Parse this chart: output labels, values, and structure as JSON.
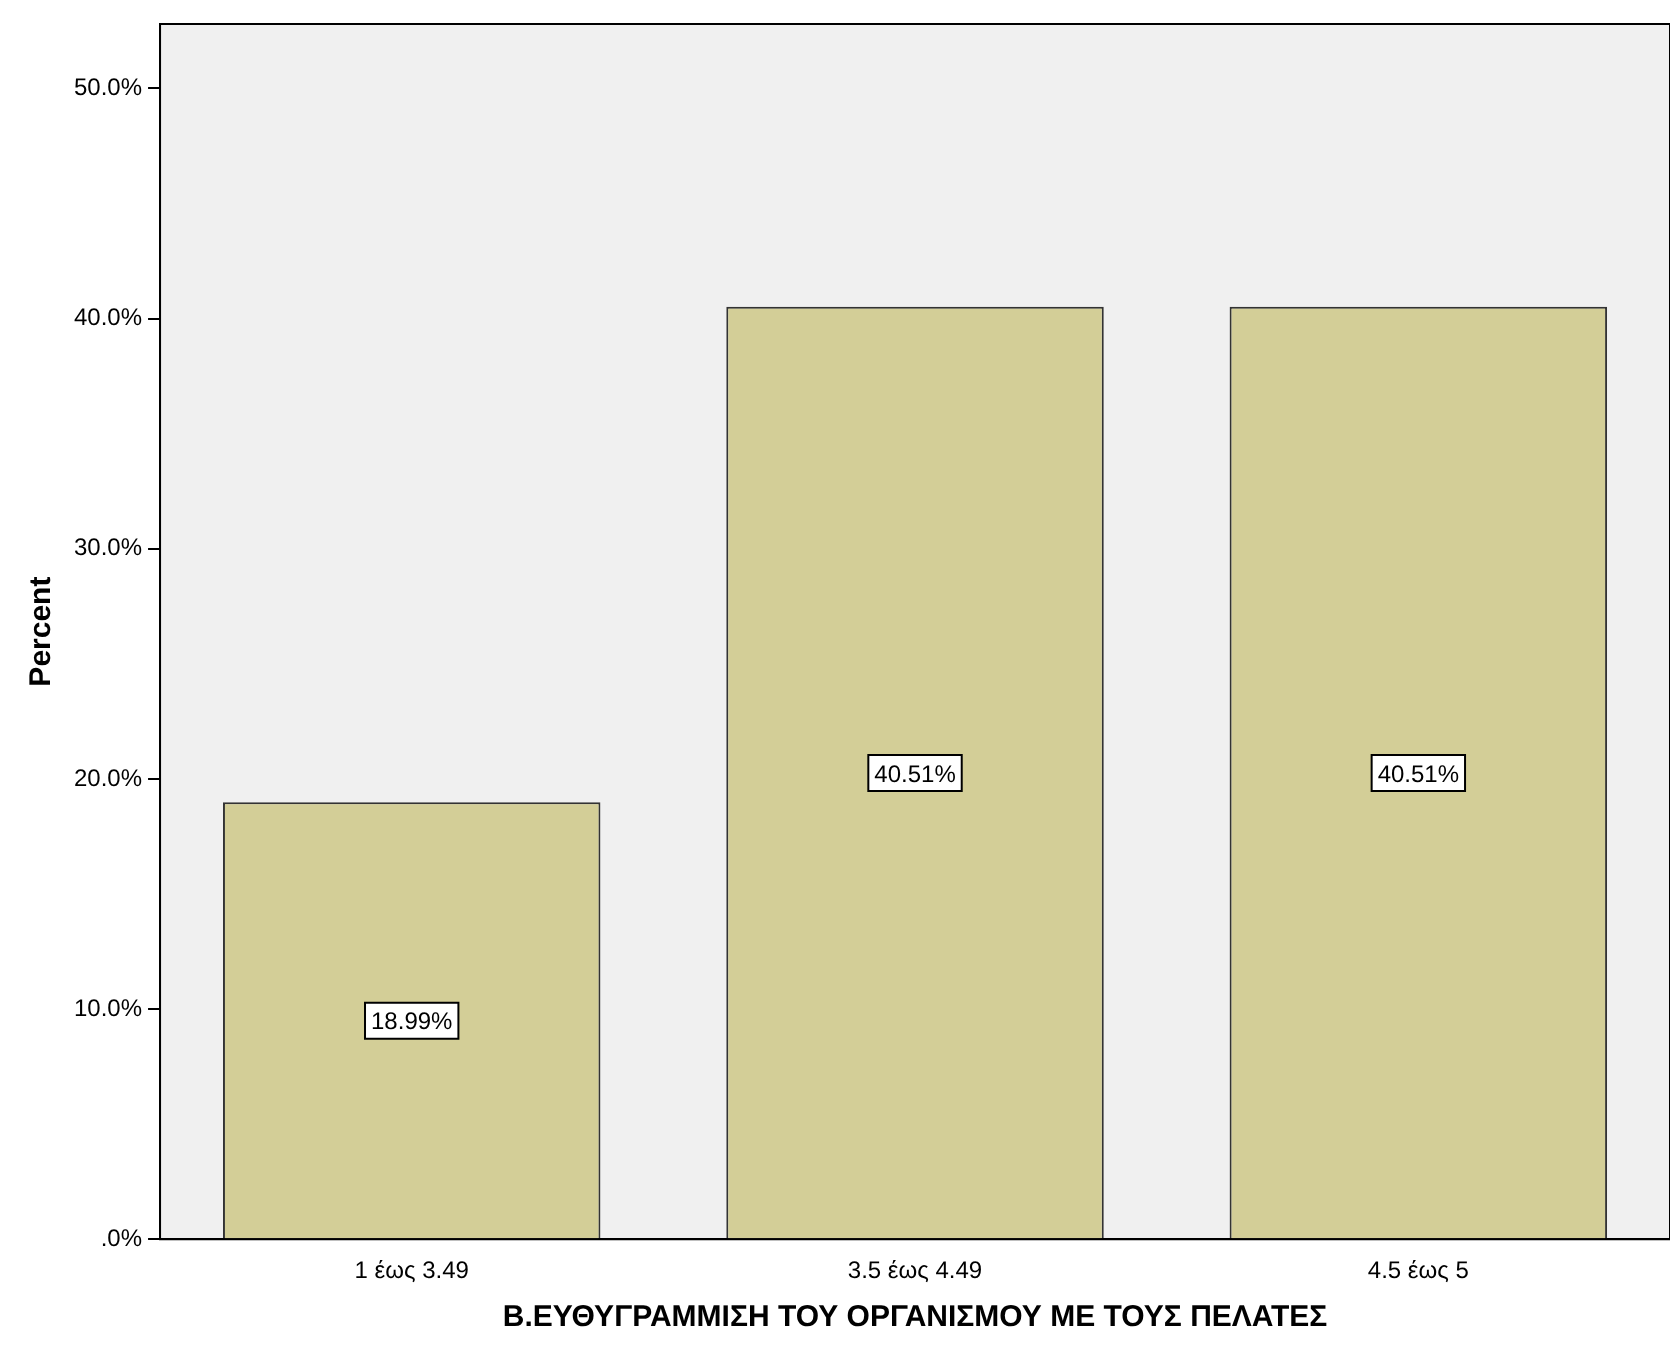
{
  "chart_data": {
    "type": "bar",
    "xlabel": "Β.ΕΥΘΥΓΡΑΜΜΙΣΗ ΤΟΥ ΟΡΓΑΝΙΣΜΟΥ ΜΕ ΤΟΥΣ ΠΕΛΑΤΕΣ",
    "ylabel": "Percent",
    "categories": [
      "1 έως 3.49",
      "3.5 έως 4.49",
      "4.5 έως 5"
    ],
    "values": [
      18.99,
      40.51,
      40.51
    ],
    "color": "#d3ce97",
    "value_labels": [
      "18.99%",
      "40.51%",
      "40.51%"
    ],
    "ylim": [
      0,
      52.8
    ],
    "yticks": [
      {
        "value": 0,
        "label": ".0%"
      },
      {
        "value": 10,
        "label": "10.0%"
      },
      {
        "value": 20,
        "label": "20.0%"
      },
      {
        "value": 30,
        "label": "30.0%"
      },
      {
        "value": 40,
        "label": "40.0%"
      },
      {
        "value": 50,
        "label": "50.0%"
      }
    ],
    "grid": false,
    "legend": false
  }
}
